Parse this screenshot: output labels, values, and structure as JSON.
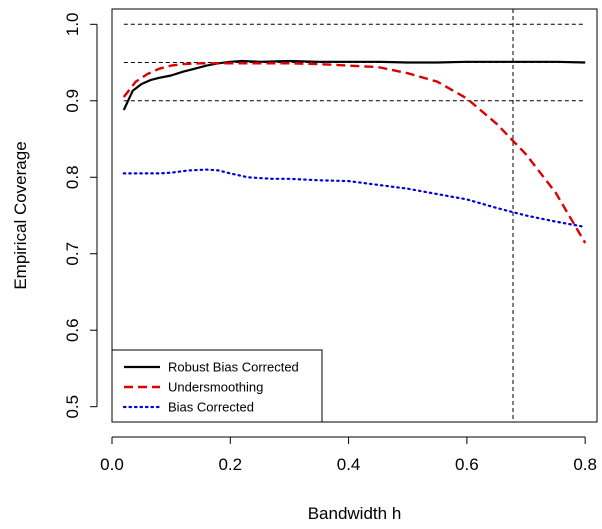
{
  "chart_data": {
    "type": "line",
    "title": "",
    "xlabel": "Bandwidth h",
    "ylabel": "Empirical Coverage",
    "xlim": [
      0.0,
      0.82
    ],
    "ylim": [
      0.48,
      1.02
    ],
    "x_ticks": [
      0.0,
      0.2,
      0.4,
      0.6,
      0.8
    ],
    "x_tick_labels": [
      "0.0",
      "0.2",
      "0.4",
      "0.6",
      "0.8"
    ],
    "y_ticks": [
      0.5,
      0.6,
      0.7,
      0.8,
      0.9,
      1.0
    ],
    "y_tick_labels": [
      "0.5",
      "0.6",
      "0.7",
      "0.8",
      "0.9",
      "1.0"
    ],
    "grid": false,
    "legend_position": "bottom-left",
    "reference_lines": {
      "horizontal": [
        1.0,
        0.95,
        0.9
      ],
      "vertical": [
        0.678
      ]
    },
    "series": [
      {
        "name": "Robust Bias Corrected",
        "color": "#000000",
        "style": "solid",
        "x": [
          0.02,
          0.035,
          0.05,
          0.065,
          0.08,
          0.1,
          0.12,
          0.14,
          0.16,
          0.18,
          0.2,
          0.22,
          0.25,
          0.3,
          0.35,
          0.4,
          0.45,
          0.5,
          0.55,
          0.6,
          0.65,
          0.7,
          0.75,
          0.8
        ],
        "y": [
          0.888,
          0.913,
          0.922,
          0.927,
          0.93,
          0.933,
          0.938,
          0.942,
          0.946,
          0.949,
          0.951,
          0.952,
          0.951,
          0.952,
          0.951,
          0.951,
          0.951,
          0.95,
          0.95,
          0.951,
          0.951,
          0.951,
          0.951,
          0.95
        ]
      },
      {
        "name": "Undersmoothing",
        "color": "#dd0000",
        "style": "dashed",
        "x": [
          0.02,
          0.04,
          0.06,
          0.08,
          0.1,
          0.12,
          0.15,
          0.2,
          0.25,
          0.3,
          0.35,
          0.4,
          0.45,
          0.5,
          0.55,
          0.6,
          0.65,
          0.7,
          0.75,
          0.8
        ],
        "y": [
          0.905,
          0.925,
          0.935,
          0.942,
          0.946,
          0.948,
          0.949,
          0.949,
          0.949,
          0.949,
          0.948,
          0.946,
          0.944,
          0.936,
          0.925,
          0.903,
          0.87,
          0.83,
          0.78,
          0.714
        ]
      },
      {
        "name": "Bias Corrected",
        "color": "#0000dd",
        "style": "dotted",
        "x": [
          0.02,
          0.05,
          0.08,
          0.1,
          0.13,
          0.16,
          0.18,
          0.2,
          0.23,
          0.27,
          0.3,
          0.35,
          0.4,
          0.45,
          0.5,
          0.55,
          0.6,
          0.65,
          0.7,
          0.75,
          0.8
        ],
        "y": [
          0.805,
          0.805,
          0.805,
          0.806,
          0.809,
          0.81,
          0.809,
          0.805,
          0.8,
          0.798,
          0.798,
          0.796,
          0.795,
          0.79,
          0.785,
          0.778,
          0.771,
          0.76,
          0.75,
          0.742,
          0.735
        ]
      }
    ]
  }
}
